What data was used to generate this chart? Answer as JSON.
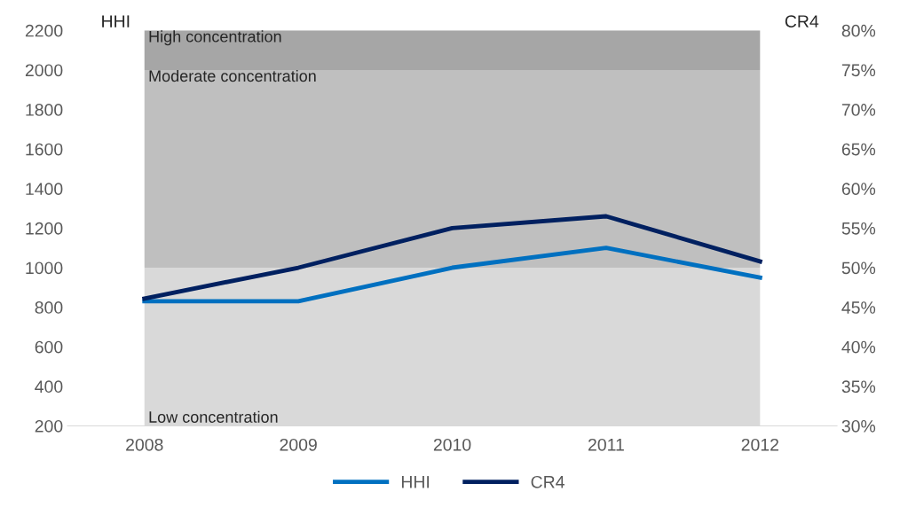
{
  "chart_data": {
    "type": "line",
    "ylabel": "HHI",
    "y2label": "CR4",
    "categories": [
      "2008",
      "2009",
      "2010",
      "2011",
      "2012"
    ],
    "series": [
      {
        "name": "HHI",
        "color": "#0070c0",
        "values": [
          830,
          830,
          1000,
          1100,
          950
        ]
      },
      {
        "name": "CR4",
        "color": "#002060",
        "values": [
          46.1,
          50,
          55,
          56.5,
          50.8
        ],
        "axis": "y2"
      }
    ],
    "ylim": [
      200,
      2200
    ],
    "yticks": [
      200,
      400,
      600,
      800,
      1000,
      1200,
      1400,
      1600,
      1800,
      2000,
      2200
    ],
    "y2lim": [
      30,
      80
    ],
    "y2ticks": [
      {
        "value": 30,
        "label": "30%"
      },
      {
        "value": 35,
        "label": "35%"
      },
      {
        "value": 40,
        "label": "40%"
      },
      {
        "value": 45,
        "label": "45%"
      },
      {
        "value": 50,
        "label": "50%"
      },
      {
        "value": 55,
        "label": "55%"
      },
      {
        "value": 60,
        "label": "60%"
      },
      {
        "value": 65,
        "label": "65%"
      },
      {
        "value": 70,
        "label": "70%"
      },
      {
        "value": 75,
        "label": "75%"
      },
      {
        "value": 80,
        "label": "80%"
      }
    ],
    "bands": [
      {
        "axis": "y",
        "from": 200,
        "to": 1000,
        "label": "Low concentration",
        "color": "#d9d9d9"
      },
      {
        "axis": "y",
        "from": 1000,
        "to": 2000,
        "label": "Moderate concentration",
        "color": "#bfbfbf"
      },
      {
        "axis": "y",
        "from": 2000,
        "to": 2200,
        "label": "High concentration",
        "color": "#a6a6a6"
      }
    ],
    "grid": false,
    "legend": "bottom",
    "marker": "none",
    "line_style": "solid"
  }
}
